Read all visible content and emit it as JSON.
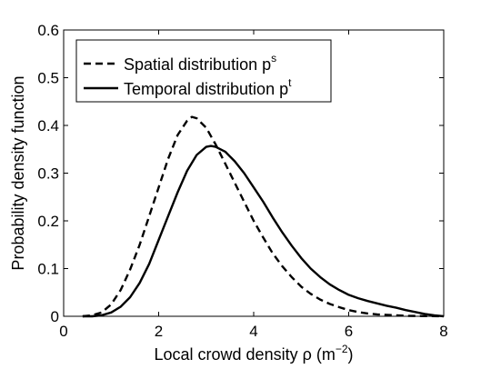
{
  "chart_data": {
    "type": "line",
    "title": "",
    "xlabel": "Local crowd density ρ (m",
    "xlabel_sup": "−2",
    "xlabel_tail": ")",
    "ylabel": "Probability density function",
    "xlim": [
      0,
      8
    ],
    "ylim": [
      0,
      0.6
    ],
    "xticks": [
      0,
      2,
      4,
      6,
      8
    ],
    "yticks": [
      0,
      0.1,
      0.2,
      0.3,
      0.4,
      0.5,
      0.6
    ],
    "xtick_labels": [
      "0",
      "2",
      "4",
      "6",
      "8"
    ],
    "ytick_labels": [
      "0",
      "0.1",
      "0.2",
      "0.3",
      "0.4",
      "0.5",
      "0.6"
    ],
    "grid": false,
    "legend_position": "top-left",
    "series": [
      {
        "name": "Spatial distribution p",
        "name_sup": "s",
        "style": "dashed",
        "color": "#000000",
        "x": [
          0.4,
          0.6,
          0.8,
          1.0,
          1.2,
          1.4,
          1.6,
          1.8,
          2.0,
          2.2,
          2.4,
          2.6,
          2.7,
          2.8,
          3.0,
          3.2,
          3.4,
          3.6,
          3.8,
          4.0,
          4.2,
          4.4,
          4.6,
          4.8,
          5.0,
          5.2,
          5.4,
          5.6,
          5.8,
          6.0,
          6.2,
          6.4,
          6.6,
          6.8,
          7.0,
          7.2,
          7.5,
          8.0
        ],
        "y": [
          0.0,
          0.002,
          0.008,
          0.025,
          0.055,
          0.098,
          0.15,
          0.21,
          0.27,
          0.33,
          0.38,
          0.41,
          0.418,
          0.415,
          0.395,
          0.36,
          0.32,
          0.28,
          0.24,
          0.2,
          0.165,
          0.132,
          0.105,
          0.082,
          0.062,
          0.047,
          0.035,
          0.026,
          0.019,
          0.013,
          0.009,
          0.006,
          0.004,
          0.003,
          0.002,
          0.001,
          0.0005,
          0.0
        ]
      },
      {
        "name": "Temporal distribution p",
        "name_sup": "t",
        "style": "solid",
        "color": "#000000",
        "x": [
          0.4,
          0.6,
          0.8,
          1.0,
          1.2,
          1.4,
          1.6,
          1.8,
          2.0,
          2.2,
          2.4,
          2.6,
          2.8,
          3.0,
          3.1,
          3.2,
          3.4,
          3.6,
          3.8,
          4.0,
          4.2,
          4.4,
          4.6,
          4.8,
          5.0,
          5.2,
          5.4,
          5.6,
          5.8,
          6.0,
          6.2,
          6.4,
          6.6,
          6.8,
          7.0,
          7.2,
          7.4,
          7.6,
          7.8,
          8.0
        ],
        "y": [
          0.0,
          0.0,
          0.002,
          0.008,
          0.02,
          0.04,
          0.07,
          0.11,
          0.16,
          0.21,
          0.26,
          0.305,
          0.338,
          0.355,
          0.357,
          0.355,
          0.345,
          0.325,
          0.3,
          0.27,
          0.24,
          0.207,
          0.176,
          0.148,
          0.122,
          0.1,
          0.082,
          0.067,
          0.055,
          0.045,
          0.038,
          0.032,
          0.027,
          0.022,
          0.018,
          0.013,
          0.009,
          0.005,
          0.002,
          0.0
        ]
      }
    ]
  }
}
